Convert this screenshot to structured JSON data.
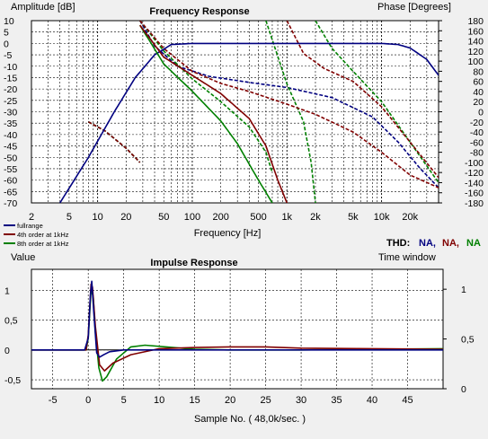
{
  "chart_data": [
    {
      "type": "line",
      "title": "Frequency Response",
      "xlabel": "Frequency [Hz]",
      "ylabel": "Amplitude [dB]",
      "y2label": "Phase [Degrees]",
      "xscale": "log",
      "xlim": [
        2,
        40000
      ],
      "ylim": [
        -70,
        10
      ],
      "y2lim": [
        -180,
        180
      ],
      "x_ticks": [
        {
          "v": 2,
          "label": "2"
        },
        {
          "v": 5,
          "label": "5"
        },
        {
          "v": 10,
          "label": "10"
        },
        {
          "v": 20,
          "label": "20"
        },
        {
          "v": 50,
          "label": "50"
        },
        {
          "v": 100,
          "label": "100"
        },
        {
          "v": 200,
          "label": "200"
        },
        {
          "v": 500,
          "label": "500"
        },
        {
          "v": 1000,
          "label": "1k"
        },
        {
          "v": 2000,
          "label": "2k"
        },
        {
          "v": 5000,
          "label": "5k"
        },
        {
          "v": 10000,
          "label": "10k"
        },
        {
          "v": 20000,
          "label": "20k"
        }
      ],
      "y_ticks": [
        10,
        5,
        0,
        -5,
        -10,
        -15,
        -20,
        -25,
        -30,
        -35,
        -40,
        -45,
        -50,
        -55,
        -60,
        -65,
        -70
      ],
      "y2_ticks": [
        180,
        160,
        140,
        120,
        100,
        80,
        60,
        40,
        20,
        0,
        -20,
        -40,
        -60,
        -80,
        -100,
        -120,
        -140,
        -160,
        -180
      ],
      "grid": true,
      "legend_position": "bottom-left",
      "thd_label": "THD:",
      "thd_values": [
        {
          "text": "NA,",
          "color": "#000080"
        },
        {
          "text": "NA,",
          "color": "#800000"
        },
        {
          "text": "NA",
          "color": "#008000"
        }
      ],
      "series": [
        {
          "name": "fullrange",
          "color": "#000080",
          "amplitude": [
            [
              4,
              -70
            ],
            [
              8,
              -50
            ],
            [
              15,
              -30
            ],
            [
              25,
              -15
            ],
            [
              40,
              -5
            ],
            [
              60,
              -0.5
            ],
            [
              100,
              0
            ],
            [
              1000,
              0
            ],
            [
              10000,
              0
            ],
            [
              15000,
              -0.5
            ],
            [
              20000,
              -2
            ],
            [
              30000,
              -7
            ],
            [
              40000,
              -14
            ]
          ],
          "phase": [
            [
              8,
              -20
            ],
            [
              12,
              -38
            ],
            [
              20,
              -72
            ],
            [
              28,
              -100
            ]
          ],
          "phase2": [
            [
              28,
              180
            ],
            [
              40,
              130
            ],
            [
              70,
              90
            ],
            [
              150,
              70
            ],
            [
              400,
              58
            ],
            [
              1000,
              48
            ],
            [
              3000,
              28
            ],
            [
              8000,
              -10
            ],
            [
              15000,
              -60
            ],
            [
              25000,
              -110
            ],
            [
              40000,
              -150
            ]
          ]
        },
        {
          "name": "4th order at 1kHz",
          "color": "#800000",
          "amplitude": [
            [
              28,
              8
            ],
            [
              50,
              -6
            ],
            [
              100,
              -14
            ],
            [
              200,
              -22
            ],
            [
              400,
              -33
            ],
            [
              600,
              -45
            ],
            [
              800,
              -60
            ],
            [
              1000,
              -70
            ]
          ],
          "phase": [
            [
              8,
              -20
            ],
            [
              12,
              -38
            ],
            [
              20,
              -72
            ],
            [
              28,
              -100
            ]
          ],
          "phase2": [
            [
              28,
              180
            ],
            [
              50,
              125
            ],
            [
              100,
              80
            ],
            [
              200,
              56
            ],
            [
              400,
              40
            ],
            [
              1000,
              15
            ],
            [
              2000,
              -5
            ],
            [
              5000,
              -40
            ],
            [
              10000,
              -80
            ],
            [
              20000,
              -125
            ],
            [
              40000,
              -150
            ]
          ],
          "phase3": [
            [
              1000,
              180
            ],
            [
              1500,
              115
            ],
            [
              2500,
              85
            ],
            [
              5000,
              60
            ],
            [
              10000,
              10
            ],
            [
              20000,
              -60
            ],
            [
              40000,
              -130
            ]
          ]
        },
        {
          "name": "8th order at 1kHz",
          "color": "#008000",
          "amplitude": [
            [
              28,
              8
            ],
            [
              50,
              -9
            ],
            [
              100,
              -21
            ],
            [
              200,
              -34
            ],
            [
              300,
              -44
            ],
            [
              500,
              -60
            ],
            [
              700,
              -70
            ]
          ],
          "phase": [
            [
              8,
              -20
            ],
            [
              12,
              -38
            ],
            [
              20,
              -72
            ],
            [
              28,
              -100
            ]
          ],
          "phase2": [
            [
              28,
              180
            ],
            [
              50,
              120
            ],
            [
              100,
              65
            ],
            [
              200,
              20
            ],
            [
              400,
              -30
            ],
            [
              600,
              -80
            ],
            [
              700,
              -120
            ]
          ],
          "phase3": [
            [
              600,
              180
            ],
            [
              1000,
              55
            ],
            [
              1500,
              -20
            ],
            [
              1800,
              -100
            ],
            [
              2000,
              -180
            ]
          ],
          "phase4": [
            [
              2000,
              180
            ],
            [
              3000,
              125
            ],
            [
              5000,
              80
            ],
            [
              10000,
              20
            ],
            [
              20000,
              -60
            ],
            [
              40000,
              -140
            ]
          ]
        }
      ]
    },
    {
      "type": "line",
      "title": "Impulse Response",
      "xlabel": "Sample No. ( 48,0k/sec. )",
      "ylabel": "Value",
      "y2label": "Time window",
      "xlim": [
        -8,
        50
      ],
      "ylim": [
        -0.65,
        1.35
      ],
      "y2lim": [
        0,
        1.2
      ],
      "x_ticks": [
        -5,
        0,
        5,
        10,
        15,
        20,
        25,
        30,
        35,
        40,
        45
      ],
      "y_ticks": [
        {
          "v": 1,
          "label": "1"
        },
        {
          "v": 0.5,
          "label": "0,5"
        },
        {
          "v": 0,
          "label": "0"
        },
        {
          "v": -0.5,
          "label": "-0,5"
        }
      ],
      "y2_ticks": [
        {
          "v": 1,
          "label": "1"
        },
        {
          "v": 0.5,
          "label": "0,5"
        },
        {
          "v": 0,
          "label": "0"
        }
      ],
      "grid": true,
      "series": [
        {
          "name": "",
          "color": "#000080",
          "points": [
            [
              -8,
              0
            ],
            [
              -0.5,
              0
            ],
            [
              0,
              0.2
            ],
            [
              0.3,
              0.9
            ],
            [
              0.5,
              1.15
            ],
            [
              0.8,
              0.6
            ],
            [
              1.2,
              -0.05
            ],
            [
              1.6,
              -0.12
            ],
            [
              2.2,
              -0.08
            ],
            [
              3,
              -0.03
            ],
            [
              5,
              0
            ],
            [
              50,
              0
            ]
          ]
        },
        {
          "name": "",
          "color": "#800000",
          "points": [
            [
              -8,
              0
            ],
            [
              -0.3,
              0
            ],
            [
              0,
              0.25
            ],
            [
              0.4,
              1.1
            ],
            [
              0.6,
              1.05
            ],
            [
              1,
              0.4
            ],
            [
              1.6,
              -0.25
            ],
            [
              2.3,
              -0.35
            ],
            [
              3.5,
              -0.22
            ],
            [
              6,
              -0.08
            ],
            [
              10,
              0.02
            ],
            [
              15,
              0.04
            ],
            [
              20,
              0.05
            ],
            [
              25,
              0.05
            ],
            [
              30,
              0.03
            ],
            [
              40,
              0.02
            ],
            [
              50,
              0.01
            ]
          ]
        },
        {
          "name": "",
          "color": "#008000",
          "points": [
            [
              -8,
              0
            ],
            [
              -0.3,
              0
            ],
            [
              0,
              0.2
            ],
            [
              0.4,
              1.0
            ],
            [
              0.7,
              0.9
            ],
            [
              1,
              0.3
            ],
            [
              1.5,
              -0.3
            ],
            [
              2,
              -0.52
            ],
            [
              2.6,
              -0.45
            ],
            [
              4,
              -0.15
            ],
            [
              6,
              0.05
            ],
            [
              8,
              0.08
            ],
            [
              11,
              0.05
            ],
            [
              15,
              0.01
            ],
            [
              20,
              0
            ],
            [
              30,
              0
            ],
            [
              40,
              0.01
            ],
            [
              50,
              0.02
            ]
          ]
        },
        {
          "name": "",
          "color": "#000000",
          "points": [
            [
              -8,
              0
            ],
            [
              50,
              0
            ]
          ]
        }
      ]
    }
  ]
}
